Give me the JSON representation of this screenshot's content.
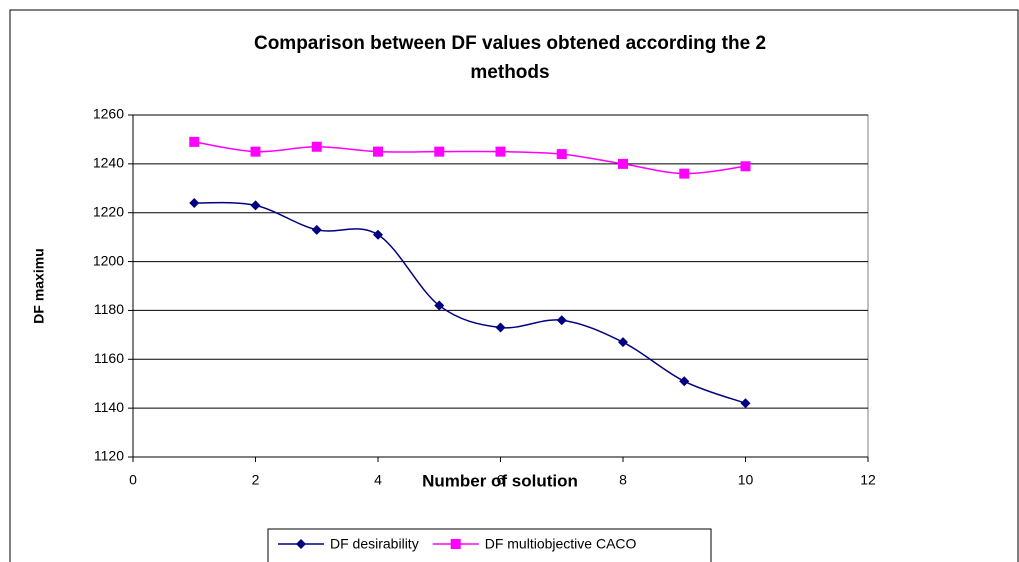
{
  "chart_data": {
    "type": "line",
    "title": [
      "Comparison between DF values obtened according the 2",
      "methods"
    ],
    "x_label": "Number of solution",
    "y_label": "DF maximu",
    "x": [
      1,
      2,
      3,
      4,
      5,
      6,
      7,
      8,
      9,
      10
    ],
    "series": [
      {
        "name": "DF desirability",
        "color": "#000080",
        "marker": "diamond",
        "values": [
          1224,
          1223,
          1213,
          1211,
          1182,
          1173,
          1176,
          1167,
          1151,
          1142
        ]
      },
      {
        "name": "DF multiobjective CACO",
        "color": "#ff00ff",
        "marker": "square",
        "values": [
          1249,
          1245,
          1247,
          1245,
          1245,
          1245,
          1244,
          1240,
          1236,
          1239
        ]
      }
    ],
    "xlim": [
      0,
      12
    ],
    "xticks": [
      0,
      2,
      4,
      6,
      8,
      10,
      12
    ],
    "ylim": [
      1120,
      1260
    ],
    "yticks": [
      1120,
      1140,
      1160,
      1180,
      1200,
      1220,
      1240,
      1260
    ],
    "grid": true,
    "smooth": true,
    "legend": "bottom"
  }
}
